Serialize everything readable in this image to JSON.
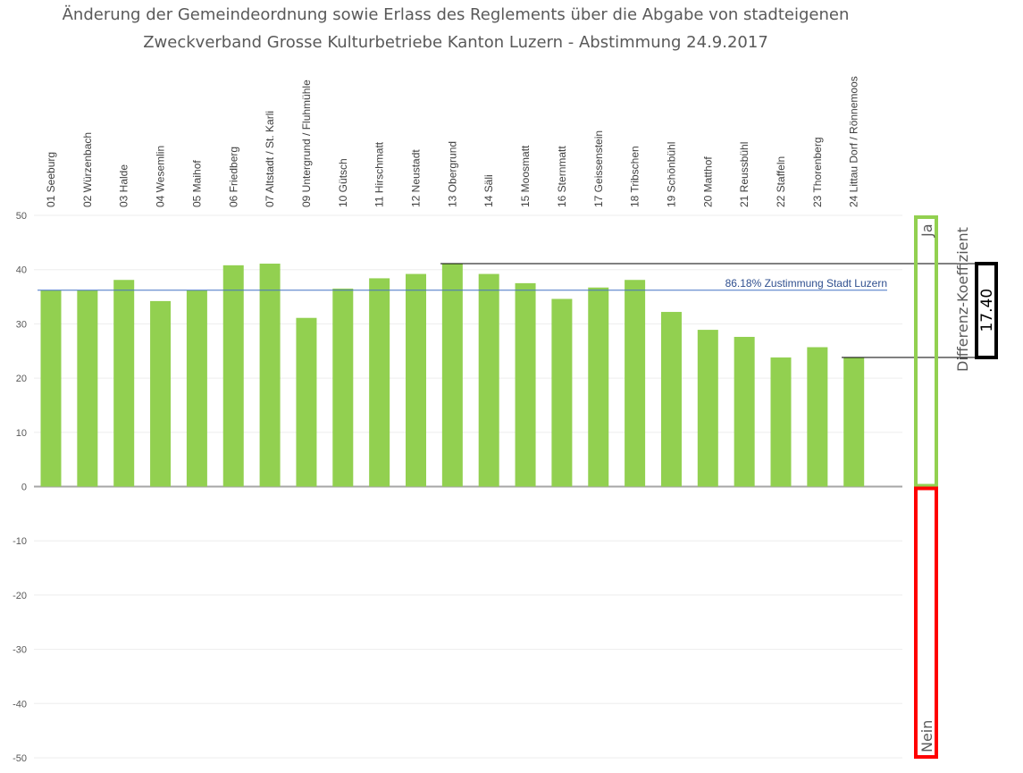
{
  "chart_data": {
    "type": "bar",
    "title": "Änderung der Gemeindeordnung sowie Erlass des Reglements über die Abgabe von stadteigenen",
    "subtitle": "Zweckverband Grosse Kulturbetriebe Kanton Luzern - Abstimmung 24.9.2017",
    "categories": [
      "01 Seeburg",
      "02 Würzenbach",
      "03 Halde",
      "04 Wesemlin",
      "05 Maihof",
      "06 Friedberg",
      "07 Altstadt / St. Karli",
      "09 Untergrund / Fluhmühle",
      "10 Gütsch",
      "11 Hirschmatt",
      "12 Neustadt",
      "13 Obergrund",
      "14 Säli",
      "15 Moosmatt",
      "16 Sternmatt",
      "17 Geissenstein",
      "18 Tribschen",
      "19 Schönbühl",
      "20 Matthof",
      "21 Reussbühl",
      "22 Staffeln",
      "23 Thorenberg",
      "24 Littau Dorf / Rönnemoos"
    ],
    "values": [
      36.2,
      36.2,
      38.1,
      34.2,
      36.2,
      40.8,
      41.1,
      31.1,
      36.5,
      38.4,
      39.2,
      41.1,
      39.2,
      37.5,
      34.6,
      36.7,
      38.1,
      32.2,
      28.9,
      27.6,
      23.8,
      25.7,
      23.8
    ],
    "ylim": [
      -50,
      50
    ],
    "yticks": [
      50,
      40,
      30,
      20,
      10,
      0,
      -10,
      -20,
      -30,
      -40,
      -50
    ],
    "grid": true,
    "bar_color": "#92d050",
    "reference_line": {
      "value": 36.2,
      "label": "86.18% Zustimmung Stadt Luzern",
      "color": "#4472c4"
    },
    "max_line_value": 41.1,
    "min_line_value": 23.8,
    "ja_label": "Ja",
    "nein_label": "Nein",
    "ja_color": "#92d050",
    "nein_color": "#ff0000",
    "diff_label": "Differenz-Koeffizient",
    "diff_value": "17.40"
  }
}
